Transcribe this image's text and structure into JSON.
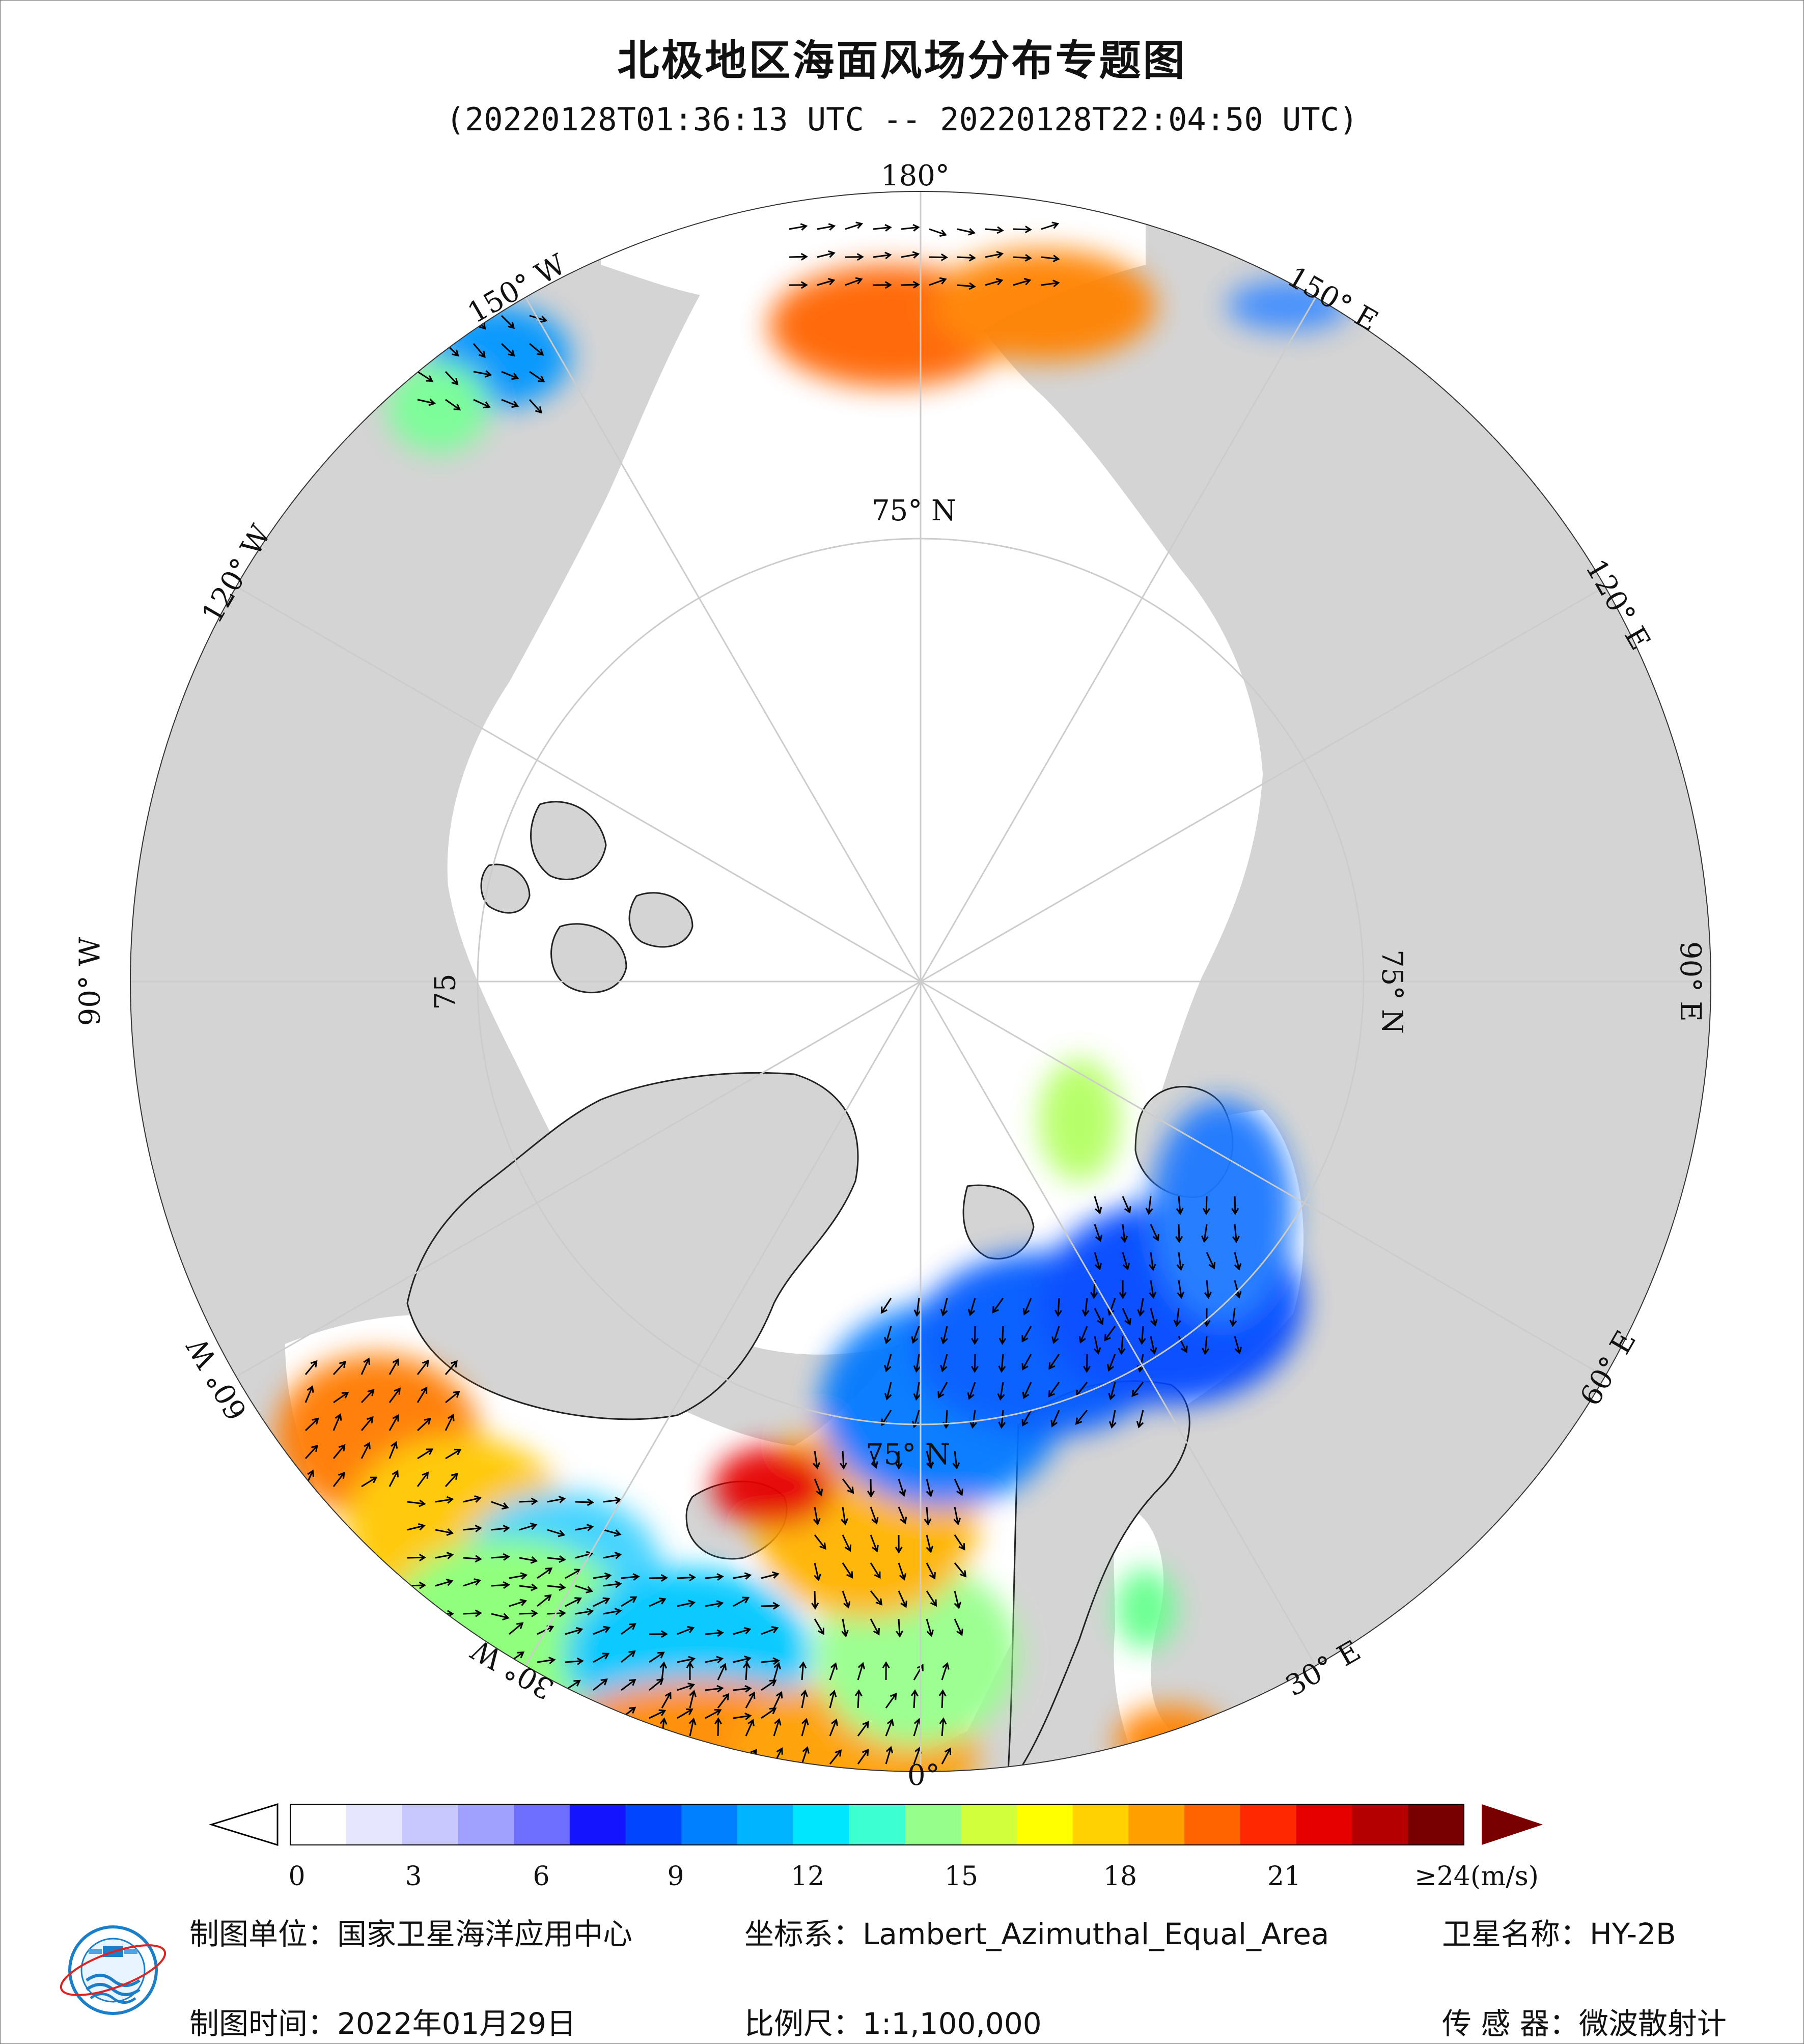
{
  "title": "北极地区海面风场分布专题图",
  "subtitle": "(20220128T01:36:13 UTC -- 20220128T22:04:50 UTC)",
  "graticule": {
    "lon_labels": [
      "180°",
      "150° E",
      "120° E",
      "90° E",
      "60° E",
      "30° E",
      "0°",
      "30° W",
      "60° W",
      "90° W",
      "120° W",
      "150° W"
    ],
    "lat_labels": [
      "75° N",
      "75° N",
      "75° N",
      "75"
    ]
  },
  "colorbar": {
    "ticks": [
      "0",
      "3",
      "6",
      "9",
      "12",
      "15",
      "18",
      "21",
      "≥24(m/s)"
    ],
    "colors": [
      "#ffffff",
      "#e6e6ff",
      "#c8c8ff",
      "#a0a0ff",
      "#6e6eff",
      "#1414ff",
      "#0046ff",
      "#0080ff",
      "#00b4ff",
      "#00e6ff",
      "#3cffd2",
      "#96ff8c",
      "#d2ff3c",
      "#ffff00",
      "#ffd200",
      "#ffa000",
      "#ff6400",
      "#ff2800",
      "#e60000",
      "#b40000",
      "#780000"
    ],
    "under_color": "#ffffff",
    "over_color": "#780000"
  },
  "footer": {
    "unit_label": "制图单位：国家卫星海洋应用中心",
    "coord_label": "坐标系：Lambert_Azimuthal_Equal_Area",
    "satellite_label": "卫星名称：HY-2B",
    "date_label": "制图时间：2022年01月29日",
    "scale_label": "比例尺：1:1,100,000",
    "sensor_label": "传 感 器：微波散射计"
  },
  "colors": {
    "land": "#d4d4d4",
    "ocean": "#ffffff",
    "grid": "#c8c8c8",
    "arrow": "#000000"
  }
}
